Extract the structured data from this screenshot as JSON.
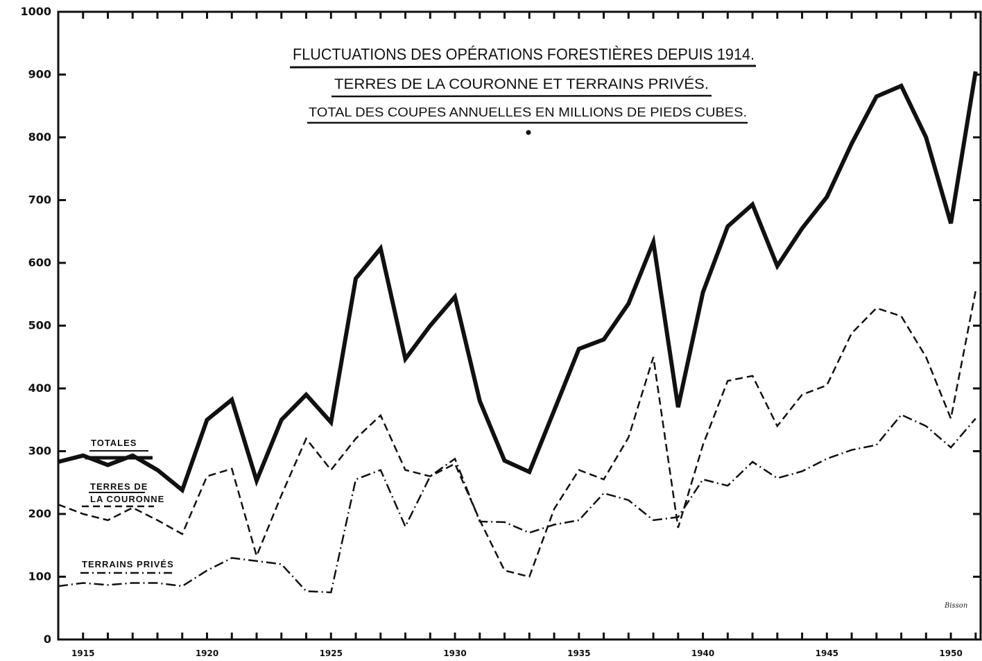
{
  "chart_data": {
    "type": "line",
    "title_lines": [
      "FLUCTUATIONS DES OPÉRATIONS FORESTIÈRES DEPUIS 1914.",
      "TERRES DE LA COURONNE ET TERRAINS PRIVÉS.",
      "TOTAL DES COUPES ANNUELLES EN MILLIONS DE PIEDS CUBES."
    ],
    "xlim": [
      1914,
      1951.2
    ],
    "ylim": [
      0,
      1000
    ],
    "y_ticks": [
      0,
      100,
      200,
      300,
      400,
      500,
      600,
      700,
      800,
      900,
      1000
    ],
    "x_tick_labels": [
      {
        "year": 1915,
        "label": "1915"
      },
      {
        "year": 1920,
        "label": "1920"
      },
      {
        "year": 1925,
        "label": "1925"
      },
      {
        "year": 1930,
        "label": "1930"
      },
      {
        "year": 1935,
        "label": "1935"
      },
      {
        "year": 1940,
        "label": "1940"
      },
      {
        "year": 1945,
        "label": "1945"
      },
      {
        "year": 1950,
        "label": "1950"
      }
    ],
    "grid": false,
    "legend_placement": "left, inline labels",
    "signature": "Bisson",
    "series": [
      {
        "name": "TOTALES",
        "style": "solid-thick",
        "legend_y": 310,
        "x": [
          1914,
          1915,
          1916,
          1917,
          1918,
          1919,
          1920,
          1921,
          1922,
          1923,
          1924,
          1925,
          1926,
          1927,
          1928,
          1929,
          1930,
          1931,
          1932,
          1933,
          1934,
          1935,
          1936,
          1937,
          1938,
          1939,
          1940,
          1941,
          1942,
          1943,
          1944,
          1945,
          1946,
          1947,
          1948,
          1949,
          1950,
          1951
        ],
        "y": [
          283,
          293,
          278,
          293,
          270,
          238,
          350,
          382,
          253,
          350,
          390,
          346,
          575,
          623,
          447,
          500,
          546,
          380,
          285,
          267,
          365,
          463,
          478,
          535,
          633,
          370,
          553,
          658,
          693,
          595,
          655,
          705,
          790,
          865,
          882,
          800,
          663,
          905
        ]
      },
      {
        "name": "TERRES DE LA COURONNE",
        "style": "dashed",
        "legend_y": 220,
        "x": [
          1914,
          1915,
          1916,
          1917,
          1918,
          1919,
          1920,
          1921,
          1922,
          1923,
          1924,
          1925,
          1926,
          1927,
          1928,
          1929,
          1930,
          1931,
          1932,
          1933,
          1934,
          1935,
          1936,
          1937,
          1938,
          1939,
          1940,
          1941,
          1942,
          1943,
          1944,
          1945,
          1946,
          1947,
          1948,
          1949,
          1950,
          1951
        ],
        "y": [
          215,
          200,
          190,
          210,
          190,
          168,
          260,
          272,
          133,
          230,
          320,
          270,
          320,
          357,
          270,
          260,
          280,
          190,
          110,
          100,
          208,
          270,
          255,
          322,
          450,
          178,
          310,
          412,
          420,
          340,
          390,
          405,
          488,
          528,
          515,
          450,
          352,
          555
        ]
      },
      {
        "name": "TERRAINS PRIVÉS",
        "style": "dash-dot",
        "legend_y": 110,
        "x": [
          1914,
          1915,
          1916,
          1917,
          1918,
          1919,
          1920,
          1921,
          1922,
          1923,
          1924,
          1925,
          1926,
          1927,
          1928,
          1929,
          1930,
          1931,
          1932,
          1933,
          1934,
          1935,
          1936,
          1937,
          1938,
          1939,
          1940,
          1941,
          1942,
          1943,
          1944,
          1945,
          1946,
          1947,
          1948,
          1949,
          1950,
          1951
        ],
        "y": [
          85,
          90,
          87,
          90,
          90,
          85,
          110,
          130,
          125,
          120,
          77,
          75,
          255,
          270,
          180,
          260,
          288,
          188,
          187,
          170,
          183,
          190,
          233,
          222,
          190,
          195,
          255,
          245,
          283,
          257,
          268,
          288,
          302,
          310,
          358,
          340,
          306,
          352
        ]
      }
    ]
  }
}
